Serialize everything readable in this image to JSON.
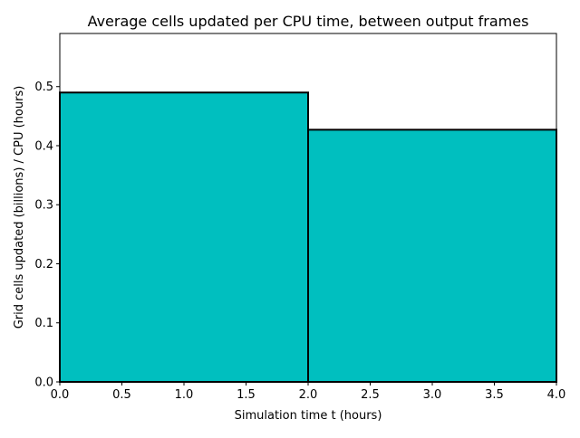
{
  "chart_data": {
    "type": "bar",
    "title": "Average cells updated per CPU time, between output frames",
    "xlabel": "Simulation time t (hours)",
    "ylabel": "Grid cells updated (billions) / CPU (hours)",
    "bins": [
      {
        "x_start": 0.0,
        "x_end": 2.0,
        "value": 0.49
      },
      {
        "x_start": 2.0,
        "x_end": 4.0,
        "value": 0.427
      }
    ],
    "xlim": [
      0.0,
      4.0
    ],
    "ylim": [
      0.0,
      0.59
    ],
    "xticks": [
      "0.0",
      "0.5",
      "1.0",
      "1.5",
      "2.0",
      "2.5",
      "3.0",
      "3.5",
      "4.0"
    ],
    "yticks": [
      "0.0",
      "0.1",
      "0.2",
      "0.3",
      "0.4",
      "0.5"
    ],
    "bar_color": "#00bfbf",
    "edge_color": "#000000",
    "grid": false,
    "legend": "none"
  }
}
